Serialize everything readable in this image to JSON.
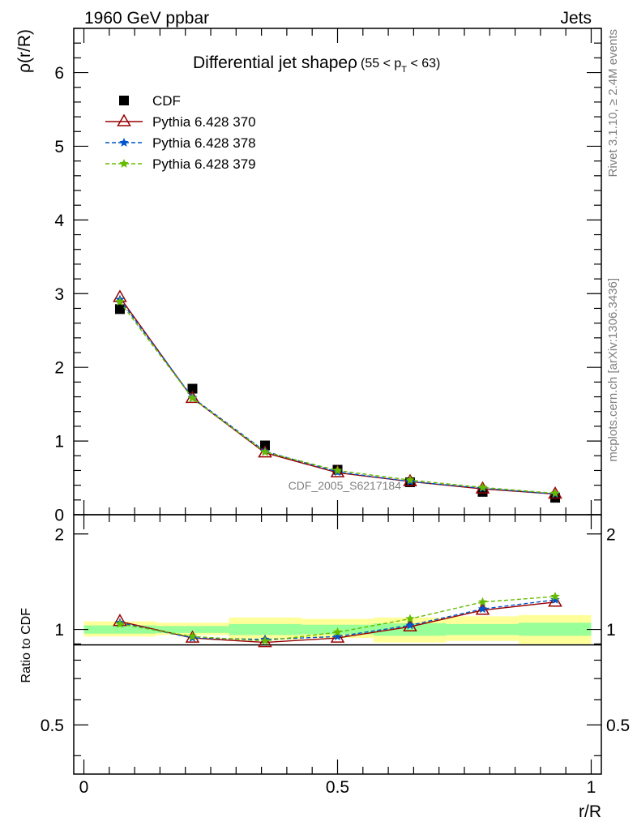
{
  "header": {
    "left": "1960 GeV ppbar",
    "right": "Jets",
    "side_top": "Rivet 3.1.10, ≥ 2.4M events",
    "side_bottom": "mcplots.cern.ch [arXiv:1306.3436]",
    "watermark": "CDF_2005_S6217184"
  },
  "chart_data": [
    {
      "type": "scatter",
      "title": "Differential jet shapeρ (55 < p_T < 63)",
      "title_main": "Differential jet shapeρ",
      "title_range_prefix": "(55 < p",
      "title_range_sub": "T",
      "title_range_suffix": " < 63)",
      "ylabel": "ρ(r/R)",
      "xlabel": "",
      "xlim": [
        -0.02,
        1.02
      ],
      "ylim": [
        0,
        6.6
      ],
      "yticks": [
        0,
        1,
        2,
        3,
        4,
        5,
        6
      ],
      "legend": {
        "position": "top-left"
      },
      "x": [
        0.071,
        0.214,
        0.357,
        0.5,
        0.643,
        0.786,
        0.929
      ],
      "series": [
        {
          "name": "CDF",
          "color": "#000000",
          "marker": "square",
          "values": [
            2.79,
            1.71,
            0.94,
            0.61,
            0.44,
            0.31,
            0.23
          ]
        },
        {
          "name": "Pythia 6.428 370",
          "color": "#990000",
          "marker": "open-triangle",
          "line": "solid",
          "values": [
            2.95,
            1.58,
            0.84,
            0.57,
            0.45,
            0.35,
            0.28
          ]
        },
        {
          "name": "Pythia 6.428 378",
          "color": "#0055cc",
          "marker": "star",
          "line": "dashed",
          "values": [
            2.92,
            1.59,
            0.86,
            0.58,
            0.45,
            0.36,
            0.28
          ]
        },
        {
          "name": "Pythia 6.428 379",
          "color": "#66bb00",
          "marker": "star",
          "line": "dashed",
          "values": [
            2.89,
            1.58,
            0.85,
            0.6,
            0.47,
            0.37,
            0.29
          ]
        }
      ]
    },
    {
      "type": "line",
      "ylabel": "Ratio to CDF",
      "xlabel": "r/R",
      "xlim": [
        -0.02,
        1.02
      ],
      "ylim": [
        0.35,
        2.3
      ],
      "ytick_values": [
        0.5,
        1,
        2
      ],
      "ytick_labels": [
        "0.5",
        "1",
        "2"
      ],
      "xticks": [
        "0",
        "0.5",
        "1"
      ],
      "bands": {
        "edges": [
          0,
          0.143,
          0.286,
          0.429,
          0.571,
          0.714,
          0.857,
          1.0
        ],
        "outer_low": [
          0.95,
          0.96,
          0.93,
          0.94,
          0.91,
          0.92,
          0.9
        ],
        "outer_high": [
          1.06,
          1.05,
          1.09,
          1.08,
          1.09,
          1.1,
          1.11
        ],
        "inner_low": [
          0.97,
          0.975,
          0.96,
          0.965,
          0.955,
          0.96,
          0.955
        ],
        "inner_high": [
          1.03,
          1.025,
          1.04,
          1.035,
          1.045,
          1.04,
          1.05
        ],
        "outer_color": "#ffff99",
        "inner_color": "#99ff99"
      },
      "x": [
        0.071,
        0.214,
        0.357,
        0.5,
        0.643,
        0.786,
        0.929
      ],
      "series": [
        {
          "name": "Pythia 6.428 370",
          "color": "#990000",
          "marker": "open-triangle",
          "line": "solid",
          "values": [
            1.06,
            0.94,
            0.91,
            0.94,
            1.02,
            1.15,
            1.22
          ]
        },
        {
          "name": "Pythia 6.428 378",
          "color": "#0055cc",
          "marker": "star",
          "line": "dashed",
          "values": [
            1.05,
            0.94,
            0.93,
            0.95,
            1.03,
            1.16,
            1.24
          ]
        },
        {
          "name": "Pythia 6.428 379",
          "color": "#66bb00",
          "marker": "star",
          "line": "dashed",
          "values": [
            1.04,
            0.95,
            0.92,
            0.98,
            1.08,
            1.22,
            1.27
          ]
        }
      ]
    }
  ]
}
